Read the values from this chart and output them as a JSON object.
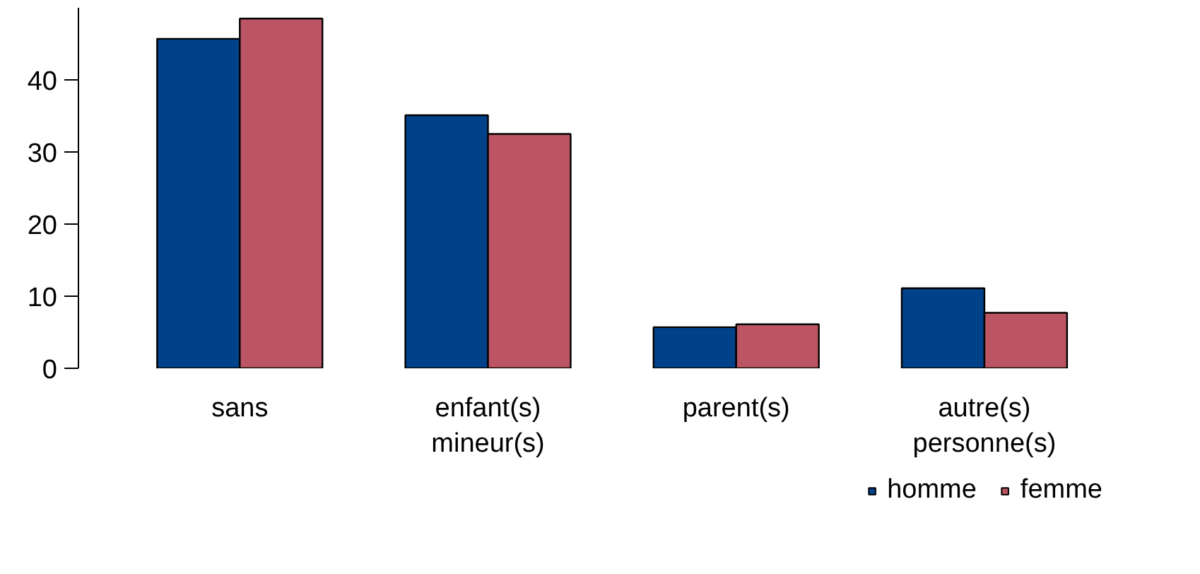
{
  "chart_data": {
    "type": "bar",
    "categories": [
      "sans",
      "enfant(s)\nmineur(s)",
      "parent(s)",
      "autre(s)\npersonne(s)"
    ],
    "series": [
      {
        "name": "homme",
        "color": "#00428a",
        "values": [
          45.7,
          35.1,
          5.7,
          11.1
        ]
      },
      {
        "name": "femme",
        "color": "#bc5563",
        "values": [
          48.5,
          32.5,
          6.1,
          7.7
        ]
      }
    ],
    "ylim": [
      0,
      50
    ],
    "yticks": [
      0,
      10,
      20,
      30,
      40
    ],
    "grid": false,
    "legend": "bottom right"
  }
}
